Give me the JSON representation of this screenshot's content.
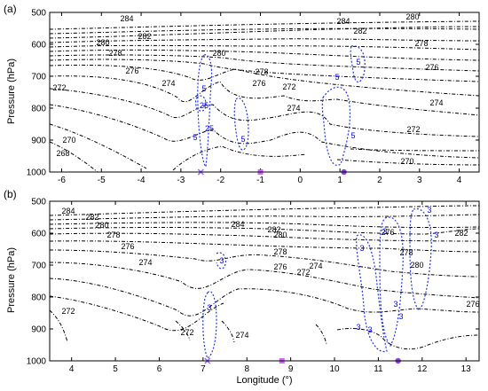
{
  "chart_data": [
    {
      "type": "contour",
      "panel_label": "(a)",
      "ylabel": "Pressure (hPa)",
      "xlabel": "",
      "xlim": [
        -6.3,
        4.5
      ],
      "ylim": [
        1000,
        500
      ],
      "xticks": [
        -6,
        -5,
        -4,
        -3,
        -2,
        -1,
        0,
        1,
        2,
        3,
        4
      ],
      "yticks": [
        500,
        600,
        700,
        800,
        900,
        1000
      ],
      "black_contour_labels": [
        "284",
        "282",
        "280",
        "278",
        "276",
        "274",
        "272",
        "270",
        "268",
        "280",
        "278",
        "276",
        "274",
        "272",
        "270",
        "284",
        "282",
        "280",
        "278",
        "276",
        "274",
        "272"
      ],
      "blue_contour_labels": [
        "5",
        "25",
        "25",
        "5",
        "5",
        "5",
        "5",
        "5"
      ],
      "markers": [
        {
          "shape": "x",
          "color": "#9966ff",
          "x": -2.5,
          "p": 1000
        },
        {
          "shape": "square",
          "color": "#cc66ff",
          "x": -1.0,
          "p": 1000
        },
        {
          "shape": "circle",
          "color": "#8844dd",
          "x": 1.1,
          "p": 1000
        }
      ]
    },
    {
      "type": "contour",
      "panel_label": "(b)",
      "ylabel": "Pressure (hPa)",
      "xlabel": "Longitude (°)",
      "xlim": [
        3.5,
        13.3
      ],
      "ylim": [
        1000,
        500
      ],
      "xticks": [
        4,
        5,
        6,
        7,
        8,
        9,
        10,
        11,
        12,
        13
      ],
      "yticks": [
        500,
        600,
        700,
        800,
        900,
        1000
      ],
      "black_contour_labels": [
        "284",
        "282",
        "280",
        "278",
        "276",
        "274",
        "272",
        "272",
        "274",
        "284",
        "282",
        "280",
        "278",
        "276",
        "272",
        "274",
        "276",
        "278",
        "280",
        "282",
        "276"
      ],
      "blue_contour_labels": [
        "3",
        "3",
        "3",
        "3",
        "3",
        "3",
        "3",
        "3",
        "3",
        "3"
      ],
      "markers": [
        {
          "shape": "x",
          "color": "#9966ff",
          "x": 7.1,
          "p": 1000
        },
        {
          "shape": "square",
          "color": "#cc66ff",
          "x": 8.8,
          "p": 1000
        },
        {
          "shape": "circle",
          "color": "#8844dd",
          "x": 11.45,
          "p": 1000
        }
      ]
    }
  ]
}
